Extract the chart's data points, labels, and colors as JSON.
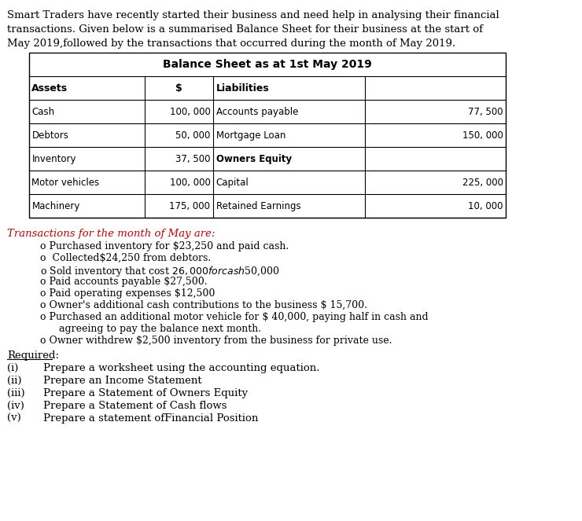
{
  "intro_text": "Smart Traders have recently started their business and need help in analysing their financial\ntransactions. Given below is a summarised Balance Sheet for their business at the start of\nMay 2019,followed by the transactions that occurred during the month of May 2019.",
  "table_title": "Balance Sheet as at 1st May 2019",
  "table_rows": [
    [
      "Cash",
      "100, 000",
      "Accounts payable",
      "77, 500"
    ],
    [
      "Debtors",
      "50, 000",
      "Mortgage Loan",
      "150, 000"
    ],
    [
      "Inventory",
      "37, 500",
      "Owners Equity",
      ""
    ],
    [
      "Motor vehicles",
      "100, 000",
      "Capital",
      "225, 000"
    ],
    [
      "Machinery",
      "175, 000",
      "Retained Earnings",
      "10, 000"
    ]
  ],
  "transactions_header": "Transactions for the month of May are:",
  "transactions": [
    "o Purchased inventory for $23,250 and paid cash.",
    "o  Collected$24,250 from debtors.",
    "o Sold inventory that cost $26,000 for cash $50,000",
    "o Paid accounts payable $27,500.",
    "o Paid operating expenses $12,500",
    "o Owner's additional cash contributions to the business $ 15,700.",
    "o Purchased an additional motor vehicle for $ 40,000, paying half in cash and",
    "      agreeing to pay the balance next month.",
    "o Owner withdrew $2,500 inventory from the business for private use."
  ],
  "required_header": "Required:",
  "required_items": [
    [
      "(i)",
      "Prepare a worksheet using the accounting equation."
    ],
    [
      "(ii)",
      "Prepare an Income Statement"
    ],
    [
      "(iii)",
      "Prepare a Statement of Owners Equity"
    ],
    [
      "(iv)",
      "Prepare a Statement of Cash flows"
    ],
    [
      "(v)",
      "Prepare a statement ofFinancial Position"
    ]
  ],
  "bg_color": "#ffffff",
  "text_color": "#000000",
  "red_color": "#cc0000",
  "table_font": "Courier New",
  "body_font": "DejaVu Serif"
}
